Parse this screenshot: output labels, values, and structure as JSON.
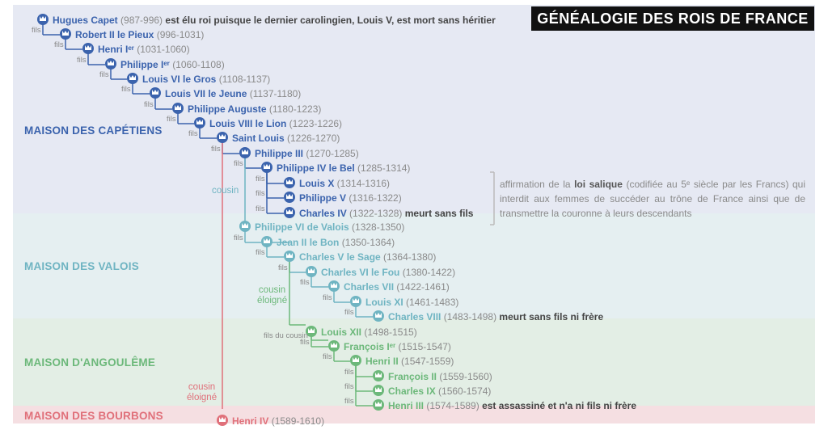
{
  "title": "GÉNÉALOGIE DES ROIS DE FRANCE",
  "colors": {
    "capetiens": "#3b63ad",
    "valois": "#6fb4c2",
    "angouleme": "#6cb87a",
    "bourbons": "#e0707a"
  },
  "houses": {
    "capetiens": "MAISON DES CAPÉTIENS",
    "valois": "MAISON DES VALOIS",
    "angouleme": "MAISON D'ANGOULÊME",
    "bourbons": "MAISON DES BOURBONS"
  },
  "kings": [
    {
      "name": "Hugues Capet",
      "dates": "(987-996)",
      "note": "est élu roi puisque le dernier carolingien, Louis V, est mort sans héritier",
      "house": "capetiens"
    },
    {
      "name": "Robert II le Pieux",
      "dates": "(996-1031)",
      "note": "",
      "house": "capetiens"
    },
    {
      "name": "Henri Iᵉʳ",
      "dates": "(1031-1060)",
      "note": "",
      "house": "capetiens"
    },
    {
      "name": "Philippe Iᵉʳ",
      "dates": "(1060-1108)",
      "note": "",
      "house": "capetiens"
    },
    {
      "name": "Louis VI le Gros",
      "dates": "(1108-1137)",
      "note": "",
      "house": "capetiens"
    },
    {
      "name": "Louis VII le Jeune",
      "dates": "(1137-1180)",
      "note": "",
      "house": "capetiens"
    },
    {
      "name": "Philippe Auguste",
      "dates": "(1180-1223)",
      "note": "",
      "house": "capetiens"
    },
    {
      "name": "Louis VIII le Lion",
      "dates": "(1223-1226)",
      "note": "",
      "house": "capetiens"
    },
    {
      "name": "Saint Louis",
      "dates": "(1226-1270)",
      "note": "",
      "house": "capetiens"
    },
    {
      "name": "Philippe III",
      "dates": "(1270-1285)",
      "note": "",
      "house": "capetiens"
    },
    {
      "name": "Philippe IV le Bel",
      "dates": "(1285-1314)",
      "note": "",
      "house": "capetiens"
    },
    {
      "name": "Louis X",
      "dates": "(1314-1316)",
      "note": "",
      "house": "capetiens"
    },
    {
      "name": "Philippe V",
      "dates": "(1316-1322)",
      "note": "",
      "house": "capetiens"
    },
    {
      "name": "Charles IV",
      "dates": "(1322-1328)",
      "note": "meurt sans fils",
      "house": "capetiens"
    },
    {
      "name": "Philippe VI de Valois",
      "dates": "(1328-1350)",
      "note": "",
      "house": "valois"
    },
    {
      "name": "Jean II le Bon",
      "dates": "(1350-1364)",
      "note": "",
      "house": "valois"
    },
    {
      "name": "Charles V le Sage",
      "dates": "(1364-1380)",
      "note": "",
      "house": "valois"
    },
    {
      "name": "Charles VI le Fou",
      "dates": "(1380-1422)",
      "note": "",
      "house": "valois"
    },
    {
      "name": "Charles VII",
      "dates": "(1422-1461)",
      "note": "",
      "house": "valois"
    },
    {
      "name": "Louis XI",
      "dates": "(1461-1483)",
      "note": "",
      "house": "valois"
    },
    {
      "name": "Charles VIII",
      "dates": "(1483-1498)",
      "note": "meurt sans fils ni frère",
      "house": "valois"
    },
    {
      "name": "Louis XII",
      "dates": "(1498-1515)",
      "note": "",
      "house": "angouleme"
    },
    {
      "name": "François Iᵉʳ",
      "dates": "(1515-1547)",
      "note": "",
      "house": "angouleme"
    },
    {
      "name": "Henri II",
      "dates": "(1547-1559)",
      "note": "",
      "house": "angouleme"
    },
    {
      "name": "François II",
      "dates": "(1559-1560)",
      "note": "",
      "house": "angouleme"
    },
    {
      "name": "Charles IX",
      "dates": "(1560-1574)",
      "note": "",
      "house": "angouleme"
    },
    {
      "name": "Henri III",
      "dates": "(1574-1589)",
      "note": "est assassiné et n'a ni fils ni frère",
      "house": "angouleme"
    },
    {
      "name": "Henri IV",
      "dates": "(1589-1610)",
      "note": "",
      "house": "bourbons"
    }
  ],
  "relations": {
    "fils": "fils",
    "fils_du_cousin": "fils du cousin",
    "cousin": "cousin",
    "cousin_eloigne_1": "cousin",
    "cousin_eloigne_2": "éloigné"
  },
  "salic_note": {
    "pre": "affirmation de la ",
    "bold": "loi salique",
    "post": " (codifiée au 5ᵉ siècle par les Francs) qui interdit aux femmes de succéder au trône de France ainsi que de transmettre la couronne à leurs descendants"
  }
}
